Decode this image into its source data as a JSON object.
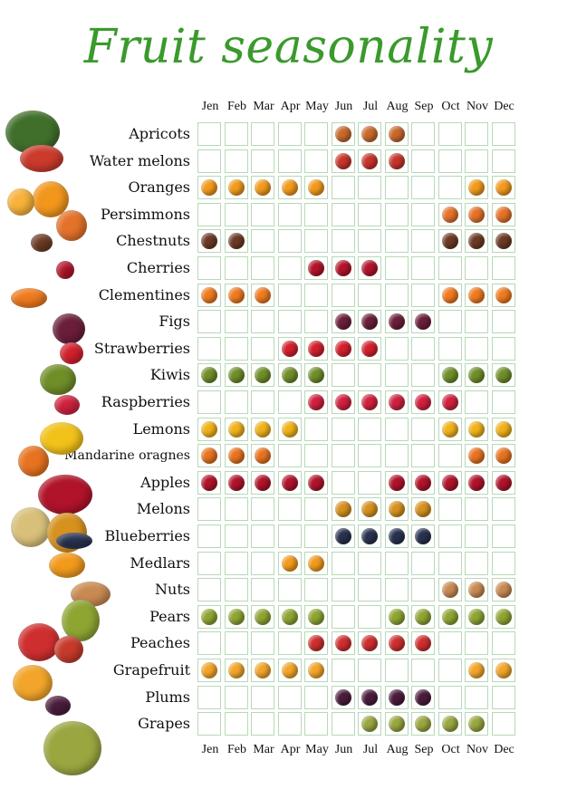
{
  "title": "Fruit seasonality",
  "chart_data": {
    "type": "table",
    "title": "Fruit seasonality",
    "months": [
      "Jen",
      "Feb",
      "Mar",
      "Apr",
      "May",
      "Jun",
      "Jul",
      "Aug",
      "Sep",
      "Oct",
      "Nov",
      "Dec"
    ],
    "fruits": [
      {
        "name": "Apricots",
        "color": "#c9692a",
        "months": [
          6,
          7,
          8
        ]
      },
      {
        "name": "Water melons",
        "color": "#c8342a",
        "months": [
          6,
          7,
          8
        ]
      },
      {
        "name": "Oranges",
        "color": "#f29a1c",
        "months": [
          1,
          2,
          3,
          4,
          5,
          11,
          12
        ]
      },
      {
        "name": "Persimmons",
        "color": "#e5722a",
        "months": [
          10,
          11,
          12
        ]
      },
      {
        "name": "Chestnuts",
        "color": "#6b3a24",
        "months": [
          1,
          2,
          10,
          11,
          12
        ]
      },
      {
        "name": "Cherries",
        "color": "#b3142a",
        "months": [
          5,
          6,
          7
        ]
      },
      {
        "name": "Clementines",
        "color": "#f07a1e",
        "months": [
          1,
          2,
          3,
          10,
          11,
          12
        ]
      },
      {
        "name": "Figs",
        "color": "#6a1e3a",
        "months": [
          6,
          7,
          8,
          9
        ]
      },
      {
        "name": "Strawberries",
        "color": "#d3202c",
        "months": [
          4,
          5,
          6,
          7
        ]
      },
      {
        "name": "Kiwis",
        "color": "#6f8e28",
        "months": [
          1,
          2,
          3,
          4,
          5,
          10,
          11,
          12
        ]
      },
      {
        "name": "Raspberries",
        "color": "#d0213f",
        "months": [
          5,
          6,
          7,
          8,
          9,
          10
        ]
      },
      {
        "name": "Lemons",
        "color": "#f0b21a",
        "months": [
          1,
          2,
          3,
          4,
          10,
          11,
          12
        ]
      },
      {
        "name": "Mandarine oragnes",
        "color": "#e8731f",
        "months": [
          1,
          2,
          3,
          11,
          12
        ]
      },
      {
        "name": "Apples",
        "color": "#b0132a",
        "months": [
          1,
          2,
          3,
          4,
          5,
          8,
          9,
          10,
          11,
          12
        ]
      },
      {
        "name": "Melons",
        "color": "#d6911e",
        "months": [
          6,
          7,
          8,
          9
        ]
      },
      {
        "name": "Blueberries",
        "color": "#283250",
        "months": [
          6,
          7,
          8,
          9
        ]
      },
      {
        "name": "Medlars",
        "color": "#f29a1c",
        "months": [
          4,
          5
        ]
      },
      {
        "name": "Nuts",
        "color": "#c98a52",
        "months": [
          10,
          11,
          12
        ]
      },
      {
        "name": "Pears",
        "color": "#8ea532",
        "months": [
          1,
          2,
          3,
          4,
          5,
          8,
          9,
          10,
          11,
          12
        ]
      },
      {
        "name": "Peaches",
        "color": "#cf2e2e",
        "months": [
          5,
          6,
          7,
          8,
          9
        ]
      },
      {
        "name": "Grapefruit",
        "color": "#f2a52a",
        "months": [
          1,
          2,
          3,
          4,
          5,
          11,
          12
        ]
      },
      {
        "name": "Plums",
        "color": "#4a1c3c",
        "months": [
          6,
          7,
          8,
          9
        ]
      },
      {
        "name": "Grapes",
        "color": "#9aa640",
        "months": [
          7,
          8,
          9,
          10,
          11
        ]
      }
    ]
  }
}
